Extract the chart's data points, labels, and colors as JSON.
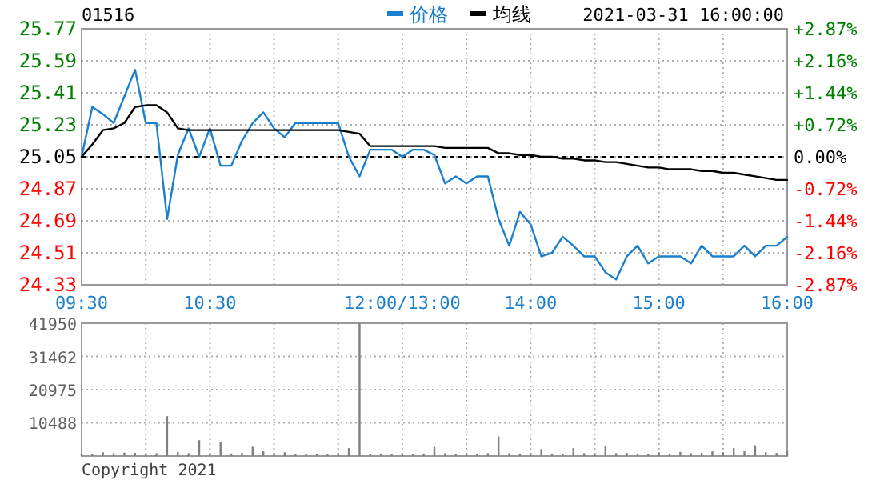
{
  "chart_data": [
    {
      "type": "line",
      "title": "01516",
      "subtitle": "2021-03-31 16:00:00",
      "legend": "top",
      "grid": true,
      "categories": [
        "09:30",
        null,
        null,
        null,
        null,
        null,
        null,
        null,
        null,
        null,
        null,
        null,
        "10:30",
        null,
        null,
        null,
        null,
        null,
        null,
        null,
        null,
        null,
        null,
        null,
        null,
        null,
        null,
        null,
        null,
        null,
        "12:00/13:00",
        null,
        null,
        null,
        null,
        null,
        null,
        null,
        null,
        null,
        null,
        null,
        "14:00",
        null,
        null,
        null,
        null,
        null,
        null,
        null,
        null,
        null,
        null,
        null,
        "15:00",
        null,
        null,
        null,
        null,
        null,
        null,
        null,
        null,
        null,
        null,
        null,
        "16:00"
      ],
      "ylim": [
        24.33,
        25.77
      ],
      "yticks": [
        24.33,
        24.51,
        24.69,
        24.87,
        25.05,
        25.23,
        25.41,
        25.59,
        25.77
      ],
      "y2lim": [
        -2.87,
        2.87
      ],
      "y2ticks": [
        {
          "value": -2.87,
          "label": "-2.87%"
        },
        {
          "value": -2.16,
          "label": "-2.16%"
        },
        {
          "value": -1.44,
          "label": "-1.44%"
        },
        {
          "value": -0.72,
          "label": "-0.72%"
        },
        {
          "value": 0,
          "label": "0.00%"
        },
        {
          "value": 0.72,
          "label": "+0.72%"
        },
        {
          "value": 1.44,
          "label": "+1.44%"
        },
        {
          "value": 2.16,
          "label": "+2.16%"
        },
        {
          "value": 2.87,
          "label": "+2.87%"
        }
      ],
      "ref_lines": [
        {
          "axis": "y",
          "value": 25.05,
          "color": "#000000",
          "line_style": "dashed"
        }
      ],
      "series": [
        {
          "name": "价格",
          "color": "#1a7fcc",
          "values": [
            25.05,
            25.33,
            25.29,
            25.24,
            25.39,
            25.54,
            25.24,
            25.24,
            24.7,
            25.06,
            25.21,
            25.05,
            25.21,
            25.0,
            25.0,
            25.14,
            25.24,
            25.3,
            25.21,
            25.16,
            25.24,
            25.24,
            25.24,
            25.24,
            25.24,
            25.05,
            24.94,
            25.09,
            25.09,
            25.09,
            25.05,
            25.09,
            25.09,
            25.06,
            24.9,
            24.94,
            24.9,
            24.94,
            24.94,
            24.7,
            24.55,
            24.74,
            24.67,
            24.49,
            24.51,
            24.6,
            24.55,
            24.49,
            24.49,
            24.4,
            24.36,
            24.49,
            24.55,
            24.45,
            24.49,
            24.49,
            24.49,
            24.45,
            24.55,
            24.49,
            24.49,
            24.49,
            24.55,
            24.49,
            24.55,
            24.55,
            24.6
          ]
        },
        {
          "name": "均线",
          "color": "#000000",
          "values": [
            25.05,
            25.12,
            25.2,
            25.21,
            25.24,
            25.33,
            25.34,
            25.34,
            25.3,
            25.21,
            25.2,
            25.2,
            25.2,
            25.2,
            25.2,
            25.2,
            25.2,
            25.2,
            25.2,
            25.2,
            25.2,
            25.2,
            25.2,
            25.2,
            25.2,
            25.19,
            25.18,
            25.11,
            25.11,
            25.11,
            25.11,
            25.11,
            25.11,
            25.11,
            25.1,
            25.1,
            25.1,
            25.1,
            25.1,
            25.07,
            25.07,
            25.06,
            25.06,
            25.05,
            25.05,
            25.04,
            25.04,
            25.03,
            25.03,
            25.02,
            25.02,
            25.01,
            25.0,
            24.99,
            24.99,
            24.98,
            24.98,
            24.98,
            24.97,
            24.97,
            24.96,
            24.96,
            24.95,
            24.94,
            24.93,
            24.92,
            24.92
          ]
        }
      ]
    },
    {
      "type": "bar",
      "grid": true,
      "tick_labels": "y",
      "annotations": [
        "Copyright 2021"
      ],
      "color": "#808080",
      "categories": [
        null,
        null,
        null,
        null,
        null,
        null,
        null,
        null,
        null,
        null,
        null,
        null,
        null,
        null,
        null,
        null,
        null,
        null,
        null,
        null,
        null,
        null,
        null,
        null,
        null,
        null,
        null,
        null,
        null,
        null,
        null,
        null,
        null,
        null,
        null,
        null,
        null,
        null,
        null,
        null,
        null,
        null,
        null,
        null,
        null,
        null,
        null,
        null,
        null,
        null,
        null,
        null,
        null,
        null,
        null,
        null,
        null,
        null,
        null,
        null,
        null,
        null,
        null,
        null,
        null,
        null,
        null
      ],
      "ylim": [
        0,
        41950
      ],
      "yticks": [
        10488,
        20975,
        31462,
        41950
      ],
      "values": [
        800,
        700,
        1200,
        900,
        1100,
        1000,
        700,
        900,
        12600,
        1300,
        900,
        5000,
        700,
        4500,
        800,
        1000,
        2900,
        1500,
        900,
        1200,
        700,
        800,
        600,
        700,
        900,
        2500,
        41950,
        600,
        800,
        700,
        600,
        700,
        800,
        2900,
        900,
        700,
        800,
        700,
        900,
        6200,
        900,
        800,
        900,
        2200,
        800,
        700,
        2500,
        900,
        800,
        3000,
        900,
        1000,
        800,
        700,
        1200,
        800,
        1300,
        900,
        1000,
        1500,
        1200,
        2500,
        1500,
        3400,
        1200,
        1000,
        1500
      ]
    }
  ]
}
